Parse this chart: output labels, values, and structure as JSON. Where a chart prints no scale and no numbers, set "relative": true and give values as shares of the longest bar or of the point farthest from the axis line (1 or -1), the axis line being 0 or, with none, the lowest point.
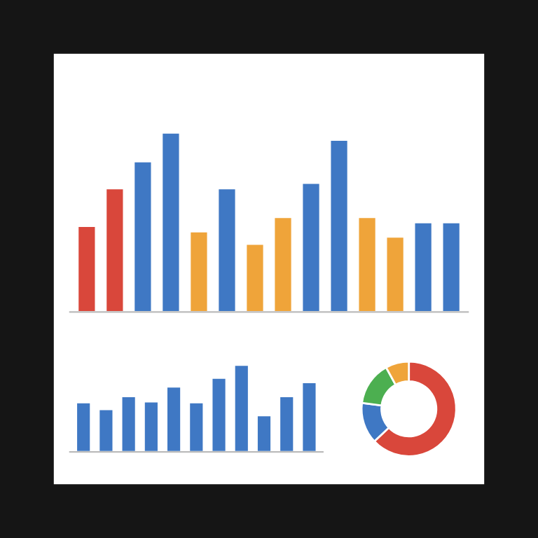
{
  "chart_data": [
    {
      "type": "bar",
      "relative": true,
      "categories": [
        null,
        null,
        null,
        null,
        null,
        null,
        null,
        null,
        null,
        null,
        null,
        null,
        null,
        null
      ],
      "values": [
        0.48,
        0.69,
        0.84,
        1,
        0.45,
        0.69,
        0.38,
        0.53,
        0.72,
        0.96,
        0.53,
        0.42,
        0.5,
        0.5
      ],
      "colors": [
        "#d9473b",
        "#d9473b",
        "#3f78c4",
        "#3f78c4",
        "#efa43a",
        "#3f78c4",
        "#efa43a",
        "#efa43a",
        "#3f78c4",
        "#3f78c4",
        "#efa43a",
        "#efa43a",
        "#3f78c4",
        "#3f78c4"
      ]
    },
    {
      "type": "bar",
      "relative": true,
      "categories": [
        null,
        null,
        null,
        null,
        null,
        null,
        null,
        null,
        null,
        null,
        null
      ],
      "values": [
        0.57,
        0.49,
        0.64,
        0.58,
        0.75,
        0.57,
        0.85,
        1,
        0.42,
        0.64,
        0.8
      ],
      "colors": [
        "#3f78c4",
        "#3f78c4",
        "#3f78c4",
        "#3f78c4",
        "#3f78c4",
        "#3f78c4",
        "#3f78c4",
        "#3f78c4",
        "#3f78c4",
        "#3f78c4",
        "#3f78c4"
      ]
    },
    {
      "type": "donut",
      "categories": [
        null,
        null,
        null,
        null
      ],
      "values": [
        63,
        14,
        15,
        8
      ],
      "colors": [
        "#d9473b",
        "#3f78c4",
        "#4caf50",
        "#efa43a"
      ]
    }
  ]
}
